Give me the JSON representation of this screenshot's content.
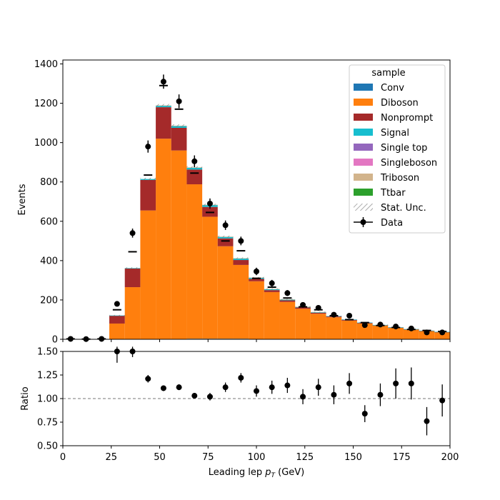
{
  "chart_data": [
    {
      "type": "bar",
      "subtype": "stacked-histogram",
      "ylabel": "Events",
      "xlim": [
        0,
        200
      ],
      "ylim": [
        0,
        1420
      ],
      "yticks": [
        "0",
        "200",
        "400",
        "600",
        "800",
        "1000",
        "1200",
        "1400"
      ],
      "bin_edges": [
        0,
        8,
        16,
        24,
        32,
        40,
        48,
        56,
        64,
        72,
        80,
        88,
        96,
        104,
        112,
        120,
        128,
        136,
        144,
        152,
        160,
        168,
        176,
        184,
        192,
        200
      ],
      "series": [
        {
          "name": "Conv",
          "color": "#1f77b4",
          "values": [
            0,
            0,
            0,
            0,
            0,
            0,
            0,
            0,
            3,
            3,
            3,
            3,
            0,
            0,
            0,
            0,
            0,
            0,
            0,
            0,
            2,
            0,
            0,
            0,
            0
          ]
        },
        {
          "name": "Diboson",
          "color": "#ff7f0e",
          "values": [
            0,
            0,
            0,
            80,
            265,
            655,
            1020,
            960,
            785,
            620,
            470,
            375,
            295,
            240,
            190,
            155,
            130,
            112,
            95,
            80,
            68,
            58,
            50,
            42,
            36
          ]
        },
        {
          "name": "Nonprompt",
          "color": "#a52a2a",
          "values": [
            0,
            0,
            0,
            40,
            95,
            155,
            160,
            115,
            75,
            50,
            40,
            25,
            12,
            10,
            8,
            7,
            5,
            4,
            4,
            3,
            2,
            2,
            1,
            1,
            1
          ]
        },
        {
          "name": "Signal",
          "color": "#17becf",
          "values": [
            0,
            0,
            0,
            1,
            2,
            5,
            8,
            10,
            10,
            10,
            8,
            8,
            6,
            5,
            4,
            3,
            3,
            2,
            2,
            2,
            1,
            1,
            1,
            1,
            1
          ]
        },
        {
          "name": "Single top",
          "color": "#9467bd",
          "values": [
            0,
            0,
            0,
            0,
            0,
            0,
            0,
            0,
            0,
            0,
            0,
            0,
            0,
            0,
            0,
            0,
            0,
            0,
            0,
            0,
            0,
            0,
            0,
            0,
            0
          ]
        },
        {
          "name": "Singleboson",
          "color": "#e377c2",
          "values": [
            0,
            0,
            0,
            0,
            0,
            0,
            0,
            0,
            0,
            0,
            0,
            0,
            0,
            0,
            0,
            0,
            0,
            0,
            0,
            0,
            0,
            0,
            0,
            0,
            0
          ]
        },
        {
          "name": "Triboson",
          "color": "#d2b48c",
          "values": [
            0,
            0,
            0,
            0,
            0,
            0,
            1,
            1,
            1,
            1,
            1,
            1,
            1,
            1,
            1,
            1,
            1,
            0,
            0,
            0,
            0,
            0,
            0,
            0,
            0
          ]
        },
        {
          "name": "Ttbar",
          "color": "#2ca02c",
          "values": [
            0,
            0,
            0,
            0,
            0,
            0,
            0,
            0,
            0,
            0,
            0,
            0,
            0,
            0,
            0,
            0,
            0,
            0,
            0,
            0,
            0,
            0,
            0,
            0,
            0
          ]
        }
      ],
      "stat_unc": [
        0,
        0,
        0,
        3,
        4,
        6,
        7,
        7,
        6,
        5,
        5,
        4,
        3,
        3,
        3,
        2,
        2,
        2,
        2,
        2,
        2,
        1,
        1,
        1,
        1
      ],
      "data": {
        "name": "Data",
        "values": [
          2,
          1,
          2,
          180,
          540,
          980,
          1310,
          1210,
          905,
          690,
          580,
          500,
          345,
          285,
          235,
          175,
          160,
          125,
          120,
          72,
          75,
          65,
          55,
          35,
          35
        ],
        "errors": [
          1.5,
          1,
          1.5,
          13,
          23,
          31,
          36,
          35,
          30,
          26,
          24,
          22,
          19,
          17,
          15,
          13,
          13,
          11,
          11,
          9,
          9,
          8,
          7,
          6,
          6
        ]
      },
      "dashes": [
        2,
        1,
        2,
        150,
        445,
        835,
        1290,
        1170,
        845,
        645,
        500,
        450,
        310,
        265,
        210,
        165,
        150,
        120,
        100,
        85,
        70,
        60,
        50,
        45,
        40
      ],
      "legend": {
        "title": "sample",
        "position": "top-right",
        "entries": [
          "Conv",
          "Diboson",
          "Nonprompt",
          "Signal",
          "Single top",
          "Singleboson",
          "Triboson",
          "Ttbar",
          "Stat. Unc.",
          "Data"
        ]
      }
    },
    {
      "type": "scatter",
      "subtype": "ratio-errorbar",
      "xlabel": "Leading lep $p_T$ (GeV)",
      "xlabel_main": "Leading lep ",
      "xlabel_var": "p",
      "xlabel_sub": "T",
      "xlabel_unit": " (GeV)",
      "ylabel": "Ratio",
      "xlim": [
        0,
        200
      ],
      "ylim": [
        0.5,
        1.5
      ],
      "xticks": [
        "0",
        "25",
        "50",
        "75",
        "100",
        "125",
        "150",
        "175",
        "200"
      ],
      "yticks": [
        "0.50",
        "0.75",
        "1.00",
        "1.25",
        "1.50"
      ],
      "reference_line": 1.0,
      "x": [
        28,
        36,
        44,
        52,
        60,
        68,
        76,
        84,
        92,
        100,
        108,
        116,
        124,
        132,
        140,
        148,
        156,
        164,
        172,
        180,
        188,
        196
      ],
      "values": [
        1.5,
        1.5,
        1.21,
        1.11,
        1.12,
        1.03,
        1.02,
        1.12,
        1.22,
        1.08,
        1.12,
        1.14,
        1.02,
        1.12,
        1.04,
        1.16,
        0.84,
        1.04,
        1.16,
        1.16,
        0.76,
        0.98
      ],
      "errors": [
        0.12,
        0.06,
        0.04,
        0.03,
        0.03,
        0.03,
        0.04,
        0.05,
        0.05,
        0.06,
        0.07,
        0.08,
        0.08,
        0.09,
        0.1,
        0.11,
        0.09,
        0.12,
        0.16,
        0.17,
        0.15,
        0.17
      ]
    }
  ]
}
